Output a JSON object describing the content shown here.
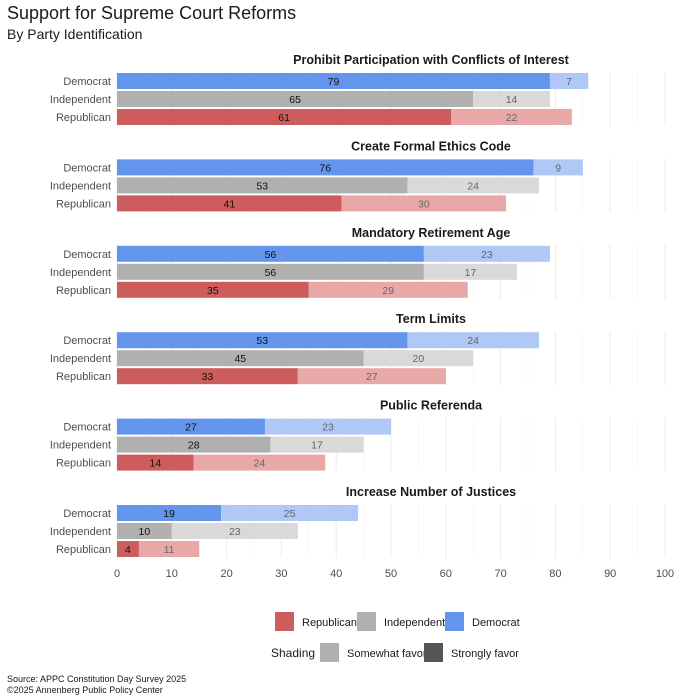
{
  "title": "Support for Supreme Court Reforms",
  "subtitle": "By Party Identification",
  "source_line": "Source: APPC Constitution Day Survey 2025",
  "credit_line": "©2025 Annenberg Public Policy Center",
  "legend": {
    "party_items": [
      {
        "label": "Republican",
        "color": "#cd5c5c"
      },
      {
        "label": "Independent",
        "color": "#b0b0b0"
      },
      {
        "label": "Democrat",
        "color": "#6495ed"
      }
    ],
    "shading_title": "Shading",
    "shading_items": [
      {
        "label": "Somewhat favor",
        "color": "#b0b0b0"
      },
      {
        "label": "Strongly favor",
        "color": "#555555"
      }
    ]
  },
  "colors": {
    "Democrat": {
      "strong": "#6495ed",
      "somewhat": "#b0c8f5"
    },
    "Independent": {
      "strong": "#b0b0b0",
      "somewhat": "#d9d9d9"
    },
    "Republican": {
      "strong": "#cd5c5c",
      "somewhat": "#e8a8a8"
    }
  },
  "chart_data": {
    "type": "bar",
    "orientation": "horizontal",
    "stacked": true,
    "xlim": [
      0,
      100
    ],
    "xticks": [
      0,
      10,
      20,
      30,
      40,
      50,
      60,
      70,
      80,
      90,
      100
    ],
    "grid": true,
    "legend_position": "bottom",
    "categories": [
      "Democrat",
      "Independent",
      "Republican"
    ],
    "stack_segments": [
      "Strongly favor",
      "Somewhat favor"
    ],
    "panels": [
      {
        "title": "Prohibit Participation with Conflicts of Interest",
        "strongly": [
          79,
          65,
          61
        ],
        "somewhat": [
          7,
          14,
          22
        ]
      },
      {
        "title": "Create Formal Ethics Code",
        "strongly": [
          76,
          53,
          41
        ],
        "somewhat": [
          9,
          24,
          30
        ]
      },
      {
        "title": "Mandatory Retirement Age",
        "strongly": [
          56,
          56,
          35
        ],
        "somewhat": [
          23,
          17,
          29
        ]
      },
      {
        "title": "Term Limits",
        "strongly": [
          53,
          45,
          33
        ],
        "somewhat": [
          24,
          20,
          27
        ]
      },
      {
        "title": "Public Referenda",
        "strongly": [
          27,
          28,
          14
        ],
        "somewhat": [
          23,
          17,
          24
        ]
      },
      {
        "title": "Increase Number of Justices",
        "strongly": [
          19,
          10,
          4
        ],
        "somewhat": [
          25,
          23,
          11
        ]
      }
    ]
  }
}
